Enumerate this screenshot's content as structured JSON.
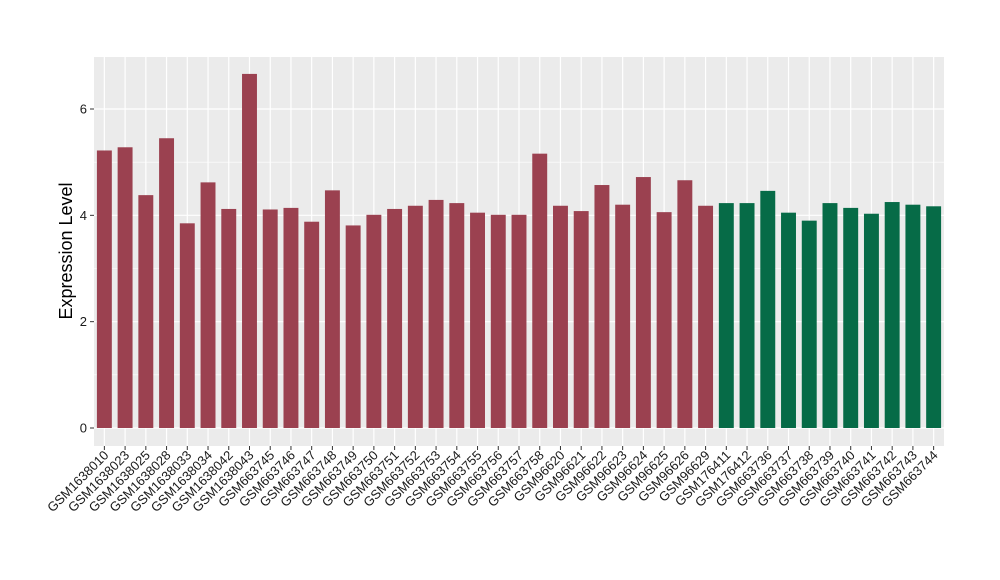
{
  "chart_data": {
    "type": "bar",
    "title": "",
    "xlabel": "",
    "ylabel": "Expression Level",
    "ylim": [
      0,
      7
    ],
    "yticks": [
      0,
      2,
      4,
      6
    ],
    "grid": true,
    "legend": "none",
    "colors": {
      "group1": "#9b4150",
      "group2": "#066b47",
      "panel_bg": "#ebebeb",
      "grid": "#ffffff"
    },
    "categories": [
      "GSM1638010",
      "GSM1638023",
      "GSM1638025",
      "GSM1638028",
      "GSM1638033",
      "GSM1638034",
      "GSM1638042",
      "GSM1638043",
      "GSM663745",
      "GSM663746",
      "GSM663747",
      "GSM663748",
      "GSM663749",
      "GSM663750",
      "GSM663751",
      "GSM663752",
      "GSM663753",
      "GSM663754",
      "GSM663755",
      "GSM663756",
      "GSM663757",
      "GSM663758",
      "GSM96620",
      "GSM96621",
      "GSM96622",
      "GSM96623",
      "GSM96624",
      "GSM96625",
      "GSM96626",
      "GSM96629",
      "GSM176411",
      "GSM176412",
      "GSM663736",
      "GSM663737",
      "GSM663738",
      "GSM663739",
      "GSM663740",
      "GSM663741",
      "GSM663742",
      "GSM663743",
      "GSM663744"
    ],
    "values": [
      5.22,
      5.28,
      4.38,
      5.45,
      3.85,
      4.62,
      4.12,
      6.66,
      4.11,
      4.14,
      3.88,
      4.47,
      3.81,
      4.01,
      4.12,
      4.18,
      4.29,
      4.23,
      4.05,
      4.01,
      4.01,
      5.16,
      4.18,
      4.08,
      4.57,
      4.2,
      4.72,
      4.06,
      4.66,
      4.18,
      4.23,
      4.23,
      4.46,
      4.05,
      3.9,
      4.23,
      4.14,
      4.03,
      4.25,
      4.2,
      4.17
    ],
    "groups": [
      1,
      1,
      1,
      1,
      1,
      1,
      1,
      1,
      1,
      1,
      1,
      1,
      1,
      1,
      1,
      1,
      1,
      1,
      1,
      1,
      1,
      1,
      1,
      1,
      1,
      1,
      1,
      1,
      1,
      1,
      2,
      2,
      2,
      2,
      2,
      2,
      2,
      2,
      2,
      2,
      2
    ]
  }
}
